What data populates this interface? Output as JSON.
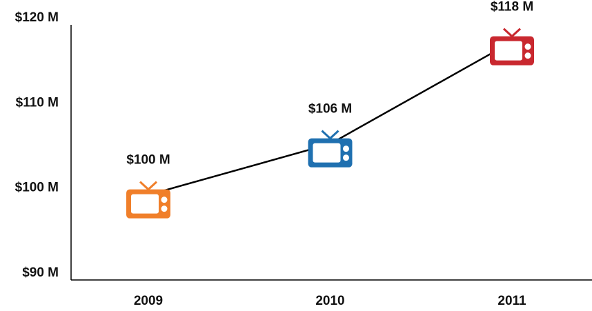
{
  "chart_data": {
    "type": "line",
    "categories": [
      "2009",
      "2010",
      "2011"
    ],
    "values": [
      100,
      106,
      118
    ],
    "value_labels": [
      "$100 M",
      "$106 M",
      "$118 M"
    ],
    "colors": [
      "#f07f2a",
      "#1f70b0",
      "#c9282f"
    ],
    "line_color": "#000000",
    "ylim": [
      90,
      120
    ],
    "yticks": [
      {
        "value": 90,
        "label": "$90 M"
      },
      {
        "value": 100,
        "label": "$100 M"
      },
      {
        "value": 110,
        "label": "$110 M"
      },
      {
        "value": 120,
        "label": "$120 M"
      }
    ],
    "grid": false
  }
}
